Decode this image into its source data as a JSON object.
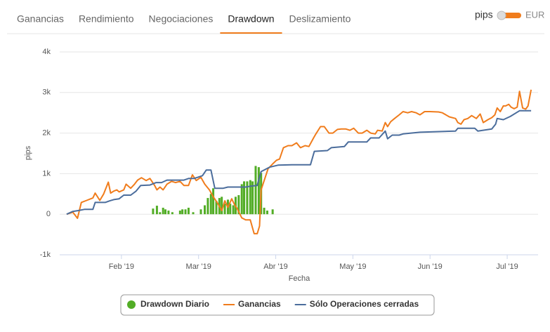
{
  "tabs": [
    "Ganancias",
    "Rendimiento",
    "Negociaciones",
    "Drawdown",
    "Deslizamiento"
  ],
  "active_tab": 3,
  "toggle": {
    "left": "pips",
    "right": "EUR"
  },
  "chart_data": {
    "type": "line",
    "x_label": "Fecha",
    "y_label": "pips",
    "xlim": [
      1.2,
      7.4
    ],
    "xticks": [
      {
        "value": 2,
        "label": "Feb '19"
      },
      {
        "value": 3,
        "label": "Mar '19"
      },
      {
        "value": 4,
        "label": "Abr '19"
      },
      {
        "value": 5,
        "label": "May '19"
      },
      {
        "value": 6,
        "label": "Jun '19"
      },
      {
        "value": 7,
        "label": "Jul '19"
      }
    ],
    "ylim": [
      -1000,
      4000
    ],
    "yticks": [
      {
        "value": -1000,
        "label": "-1k"
      },
      0,
      {
        "value": 1000,
        "label": "1k"
      },
      {
        "value": 2000,
        "label": "2k"
      },
      {
        "value": 3000,
        "label": "3k"
      },
      {
        "value": 4000,
        "label": "4k"
      }
    ],
    "grid": true,
    "legend": "bottom",
    "series": [
      {
        "name": "Drawdown Diario",
        "type": "bar",
        "color": "#52ad26",
        "x": [
          2.41,
          2.46,
          2.5,
          2.54,
          2.57,
          2.61,
          2.66,
          2.76,
          2.79,
          2.83,
          2.87,
          2.93,
          3.03,
          3.08,
          3.12,
          3.16,
          3.19,
          3.23,
          3.27,
          3.3,
          3.34,
          3.38,
          3.41,
          3.45,
          3.48,
          3.52,
          3.56,
          3.59,
          3.63,
          3.67,
          3.7,
          3.74,
          3.78,
          3.81,
          3.85,
          3.89,
          3.96
        ],
        "values": [
          140,
          210,
          50,
          160,
          120,
          90,
          50,
          90,
          120,
          120,
          160,
          50,
          120,
          220,
          400,
          500,
          640,
          330,
          400,
          430,
          260,
          360,
          260,
          220,
          430,
          470,
          740,
          810,
          810,
          840,
          810,
          1190,
          1160,
          1020,
          160,
          90,
          120
        ]
      },
      {
        "name": "Ganancias",
        "type": "line",
        "color": "#f07c1c",
        "x": [
          1.29,
          1.37,
          1.43,
          1.48,
          1.55,
          1.63,
          1.66,
          1.72,
          1.77,
          1.83,
          1.86,
          1.9,
          1.94,
          1.97,
          2.03,
          2.06,
          2.12,
          2.17,
          2.21,
          2.26,
          2.32,
          2.37,
          2.43,
          2.46,
          2.5,
          2.54,
          2.59,
          2.65,
          2.7,
          2.76,
          2.81,
          2.87,
          2.92,
          2.97,
          3.03,
          3.08,
          3.14,
          3.19,
          3.25,
          3.3,
          3.34,
          3.38,
          3.43,
          3.47,
          3.5,
          3.56,
          3.61,
          3.67,
          3.72,
          3.76,
          3.79,
          3.81,
          3.85,
          3.9,
          3.96,
          4.01,
          4.05,
          4.1,
          4.16,
          4.21,
          4.27,
          4.32,
          4.38,
          4.43,
          4.49,
          4.52,
          4.58,
          4.63,
          4.69,
          4.74,
          4.8,
          4.85,
          4.91,
          4.96,
          5.01,
          5.07,
          5.12,
          5.18,
          5.23,
          5.29,
          5.32,
          5.38,
          5.42,
          5.45,
          5.49,
          5.54,
          5.6,
          5.65,
          5.71,
          5.76,
          5.82,
          5.87,
          5.93,
          6.0,
          6.11,
          6.16,
          6.25,
          6.33,
          6.36,
          6.4,
          6.44,
          6.49,
          6.54,
          6.6,
          6.65,
          6.69,
          6.75,
          6.8,
          6.84,
          6.87,
          6.91,
          6.95,
          6.98,
          7.02,
          7.05,
          7.09,
          7.13,
          7.16,
          7.2,
          7.24,
          7.27,
          7.31
        ],
        "values": [
          0,
          50,
          -100,
          290,
          340,
          400,
          520,
          340,
          500,
          790,
          520,
          570,
          600,
          550,
          600,
          740,
          640,
          740,
          840,
          900,
          830,
          880,
          710,
          600,
          670,
          600,
          740,
          810,
          780,
          810,
          710,
          710,
          970,
          830,
          910,
          740,
          600,
          430,
          260,
          90,
          330,
          170,
          380,
          220,
          140,
          -90,
          -140,
          -140,
          -480,
          -480,
          -290,
          600,
          830,
          1120,
          1240,
          1330,
          1360,
          1640,
          1690,
          1690,
          1760,
          1640,
          1690,
          1670,
          1880,
          1980,
          2160,
          2160,
          2000,
          2000,
          2090,
          2100,
          2100,
          2070,
          2120,
          2000,
          2000,
          2070,
          2000,
          1980,
          2070,
          2050,
          2260,
          2160,
          2280,
          2360,
          2450,
          2530,
          2500,
          2530,
          2500,
          2450,
          2530,
          2530,
          2520,
          2500,
          2400,
          2360,
          2260,
          2220,
          2330,
          2360,
          2430,
          2360,
          2470,
          2260,
          2330,
          2380,
          2450,
          2620,
          2530,
          2670,
          2670,
          2710,
          2640,
          2600,
          2640,
          3030,
          2620,
          2590,
          2670,
          3070
        ]
      },
      {
        "name": "Sólo Operaciones cerradas",
        "type": "line",
        "color": "#4b6d9c",
        "x": [
          1.29,
          1.37,
          1.44,
          1.52,
          1.57,
          1.63,
          1.66,
          1.79,
          1.85,
          1.9,
          1.97,
          2.03,
          2.12,
          2.19,
          2.25,
          2.37,
          2.45,
          2.52,
          2.59,
          2.81,
          2.87,
          2.94,
          2.99,
          3.05,
          3.1,
          3.16,
          3.21,
          3.32,
          3.38,
          3.61,
          3.67,
          3.76,
          3.81,
          3.92,
          4.03,
          4.21,
          4.45,
          4.5,
          4.67,
          4.72,
          4.89,
          4.94,
          5.18,
          5.23,
          5.34,
          5.42,
          5.45,
          5.51,
          5.6,
          5.65,
          5.87,
          6.33,
          6.36,
          6.58,
          6.62,
          6.8,
          6.85,
          6.87,
          6.95,
          7.04,
          7.16,
          7.31
        ],
        "values": [
          0,
          70,
          90,
          120,
          120,
          120,
          290,
          290,
          330,
          360,
          380,
          470,
          470,
          570,
          710,
          720,
          780,
          780,
          840,
          840,
          880,
          880,
          910,
          950,
          1090,
          1090,
          640,
          640,
          670,
          670,
          690,
          710,
          1050,
          1160,
          1210,
          1220,
          1220,
          1550,
          1570,
          1640,
          1670,
          1780,
          1780,
          1880,
          1880,
          2050,
          1860,
          1950,
          1950,
          1980,
          2020,
          2050,
          2120,
          2120,
          2050,
          2100,
          2220,
          2360,
          2330,
          2410,
          2550,
          2550
        ]
      }
    ]
  }
}
